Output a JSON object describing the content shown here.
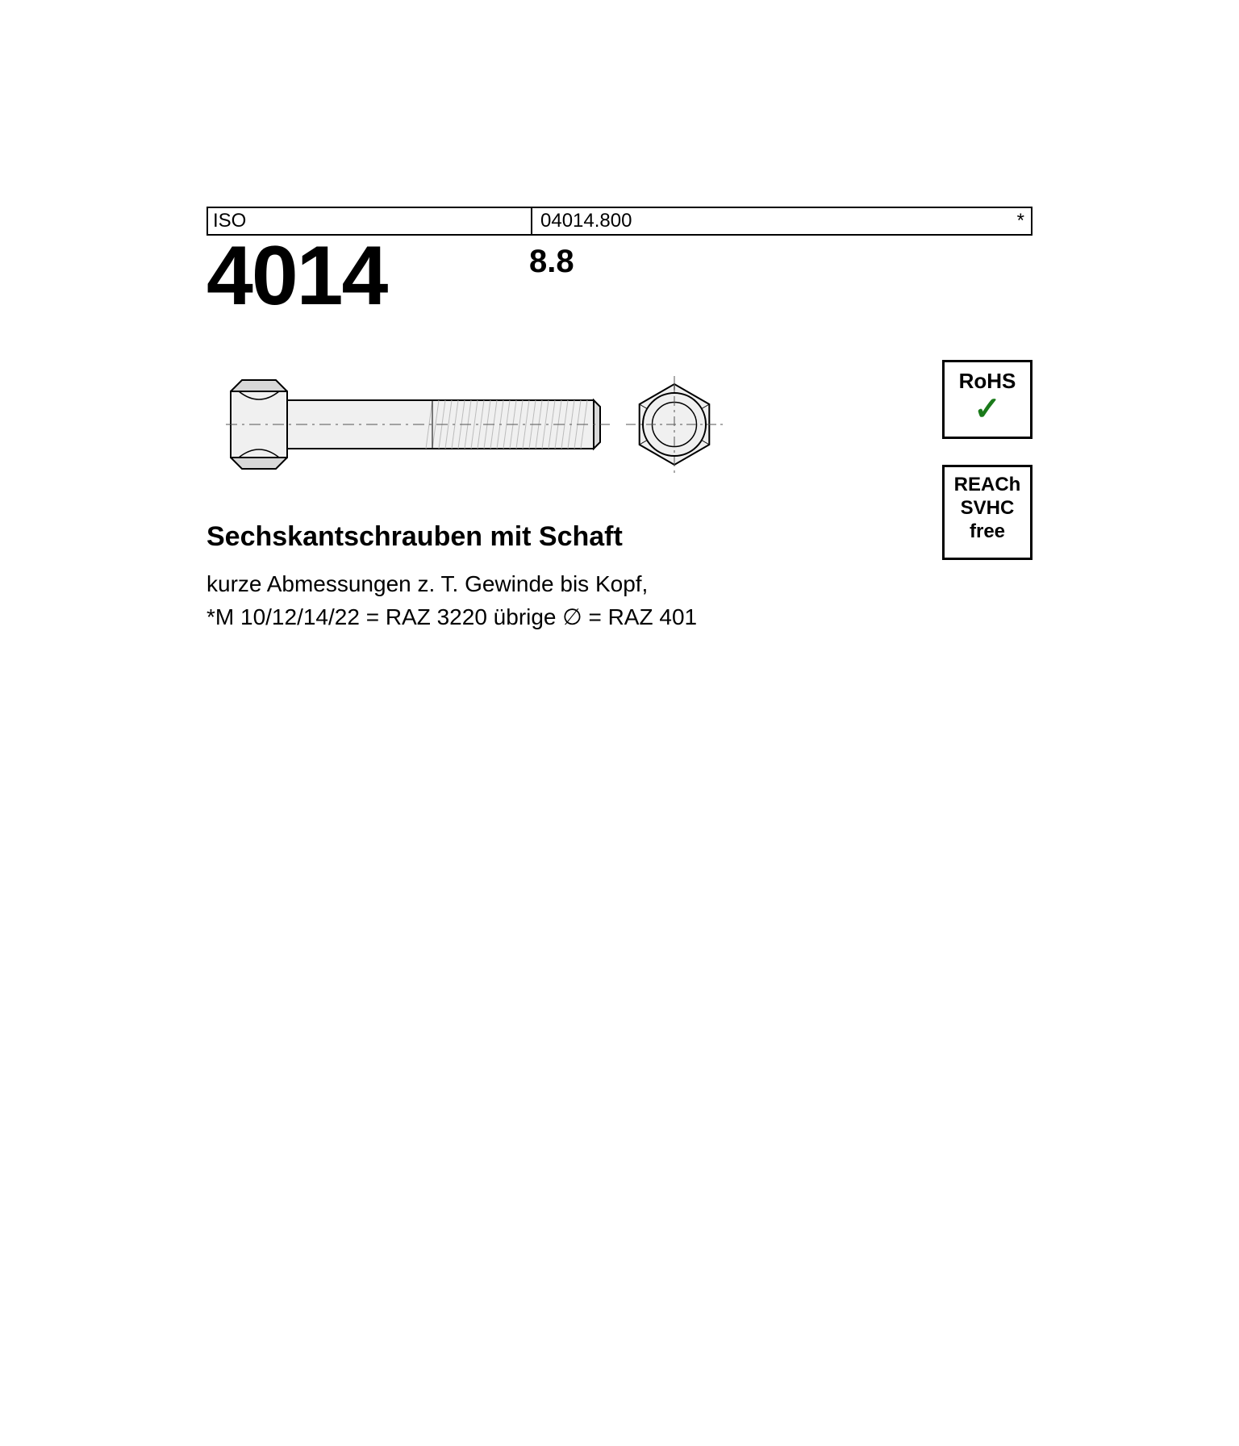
{
  "header": {
    "left": "ISO",
    "code": "04014.800",
    "mark": "*"
  },
  "standard_number": "4014",
  "strength_grade": "8.8",
  "title": "Sechskantschrauben mit Schaft",
  "description_line1": "kurze Abmessungen z. T. Gewinde bis Kopf,",
  "description_line2": "*M 10/12/14/22 = RAZ 3220 übrige ∅ = RAZ 401",
  "badges": {
    "rohs": {
      "label": "RoHS"
    },
    "reach": {
      "line1": "REACh",
      "line2": "SVHC",
      "line3": "free"
    }
  },
  "diagram": {
    "bolt_side": {
      "head_w": 70,
      "head_h": 110,
      "shaft_len": 380,
      "shaft_h": 60,
      "thread_start": 180
    },
    "hex_front": {
      "size": 100
    },
    "colors": {
      "stroke": "#000",
      "fill_light": "#f0f0f0",
      "fill_mid": "#d8d8d8",
      "fill_dark": "#bcbcbc",
      "centerline": "#555"
    }
  }
}
